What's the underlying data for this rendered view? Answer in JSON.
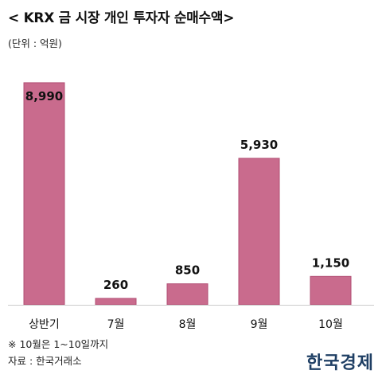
{
  "header": {
    "title": "< KRX 금 시장 개인 투자자 순매수액>",
    "unit": "(단위 : 억원)"
  },
  "footer": {
    "note": "※ 10월은 1~10일까지",
    "source": "자료 : 한국거래소",
    "brand": "한국경제"
  },
  "chart_data": {
    "type": "bar",
    "title": "< KRX 금 시장 개인 투자자 순매수액>",
    "categories": [
      "상반기",
      "7월",
      "8월",
      "9월",
      "10월"
    ],
    "values": [
      8990,
      260,
      850,
      5930,
      1150
    ],
    "value_labels": [
      "8,990",
      "260",
      "850",
      "5,930",
      "1,150"
    ],
    "ylim": [
      0,
      9600
    ],
    "grid": false,
    "legend": "none",
    "bar_color": "#c96b8d",
    "bar_edge_color": "#b14f74"
  }
}
